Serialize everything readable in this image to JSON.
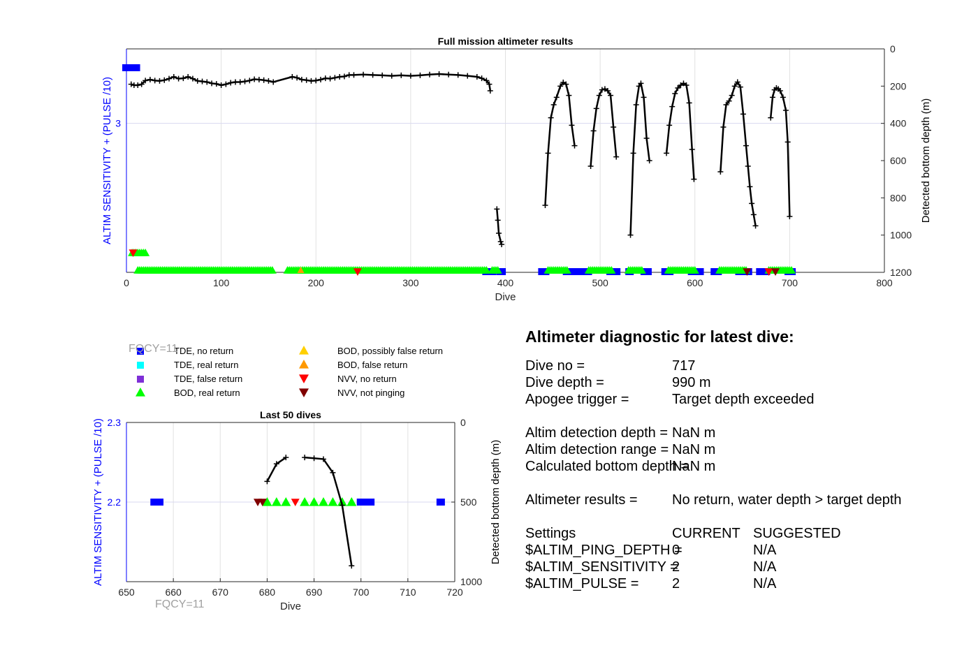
{
  "colors": {
    "tde_no_return": "#0000ff",
    "tde_real_return": "#00ffff",
    "tde_false_return": "#7e2fd7",
    "bod_real_return": "#00ff00",
    "bod_possibly_false": "#ffd000",
    "bod_false": "#ff9900",
    "nvv_no_return": "#ff0000",
    "nvv_not_pinging": "#800000",
    "depth_line": "#000000",
    "left_axis": "#0000ff",
    "fqcy": "#a0a0a0"
  },
  "fqcy_label": "FQCY=11",
  "legend": [
    {
      "label": "TDE, no return",
      "marker": "square",
      "color": "#0000ff"
    },
    {
      "label": "TDE, real return",
      "marker": "square",
      "color": "#00ffff"
    },
    {
      "label": "TDE, false return",
      "marker": "square",
      "color": "#7e2fd7"
    },
    {
      "label": "BOD, real return",
      "marker": "triangle-up",
      "color": "#00ff00"
    },
    {
      "label": "BOD, possibly false return",
      "marker": "triangle-up",
      "color": "#ffd000"
    },
    {
      "label": "BOD, false return",
      "marker": "triangle-up",
      "color": "#ff9900"
    },
    {
      "label": "NVV, no return",
      "marker": "triangle-down",
      "color": "#ff0000"
    },
    {
      "label": "NVV, not pinging",
      "marker": "triangle-down",
      "color": "#800000"
    }
  ],
  "chart_data": [
    {
      "type": "scatter",
      "title": "Full mission altimeter results",
      "xlabel": "Dive",
      "ylabel": "ALTIM SENSITIVITY + (PULSE /10)",
      "y2label": "Detected bottom depth (m)",
      "xlim": [
        0,
        800
      ],
      "xticks": [
        0,
        100,
        200,
        300,
        400,
        500,
        600,
        700,
        800
      ],
      "ylim": [
        2.2,
        3.4
      ],
      "yticks": [
        3
      ],
      "y2lim": [
        0,
        1200
      ],
      "y2ticks": [
        0,
        200,
        400,
        600,
        800,
        1000,
        1200
      ],
      "y2_reversed": true,
      "grid": true,
      "depth_segments": [
        [
          [
            5,
            190
          ],
          [
            8,
            195
          ],
          [
            12,
            195
          ],
          [
            16,
            190
          ],
          [
            20,
            170
          ],
          [
            25,
            165
          ],
          [
            30,
            170
          ],
          [
            35,
            172
          ],
          [
            40,
            168
          ],
          [
            45,
            160
          ],
          [
            50,
            150
          ],
          [
            55,
            160
          ],
          [
            60,
            158
          ],
          [
            65,
            150
          ],
          [
            70,
            160
          ],
          [
            75,
            172
          ],
          [
            80,
            175
          ],
          [
            85,
            178
          ],
          [
            90,
            185
          ],
          [
            95,
            188
          ],
          [
            100,
            195
          ],
          [
            105,
            190
          ],
          [
            110,
            182
          ],
          [
            115,
            178
          ],
          [
            120,
            178
          ],
          [
            125,
            175
          ],
          [
            130,
            170
          ],
          [
            135,
            163
          ],
          [
            140,
            165
          ],
          [
            145,
            168
          ],
          [
            150,
            172
          ],
          [
            155,
            178
          ],
          [
            175,
            150
          ],
          [
            180,
            155
          ],
          [
            185,
            165
          ],
          [
            190,
            168
          ],
          [
            195,
            172
          ],
          [
            200,
            170
          ],
          [
            205,
            165
          ],
          [
            210,
            158
          ],
          [
            215,
            160
          ],
          [
            220,
            155
          ],
          [
            225,
            150
          ],
          [
            230,
            148
          ],
          [
            235,
            140
          ],
          [
            240,
            140
          ],
          [
            250,
            138
          ],
          [
            260,
            140
          ],
          [
            270,
            142
          ],
          [
            280,
            145
          ],
          [
            290,
            142
          ],
          [
            300,
            145
          ],
          [
            310,
            142
          ],
          [
            320,
            138
          ],
          [
            330,
            135
          ],
          [
            340,
            138
          ],
          [
            350,
            140
          ],
          [
            360,
            145
          ],
          [
            370,
            150
          ],
          [
            375,
            158
          ],
          [
            380,
            170
          ],
          [
            383,
            190
          ],
          [
            384,
            225
          ]
        ],
        [
          [
            391,
            860
          ],
          [
            392,
            920
          ],
          [
            393,
            990
          ],
          [
            395,
            1035
          ],
          [
            396,
            1050
          ]
        ],
        [
          [
            442,
            840
          ],
          [
            445,
            560
          ],
          [
            448,
            370
          ],
          [
            451,
            300
          ],
          [
            454,
            260
          ],
          [
            458,
            200
          ],
          [
            461,
            180
          ],
          [
            464,
            190
          ],
          [
            467,
            250
          ],
          [
            470,
            410
          ],
          [
            473,
            520
          ]
        ],
        [
          [
            490,
            630
          ],
          [
            493,
            440
          ],
          [
            496,
            320
          ],
          [
            499,
            250
          ],
          [
            502,
            220
          ],
          [
            505,
            215
          ],
          [
            508,
            225
          ],
          [
            511,
            250
          ],
          [
            514,
            420
          ],
          [
            517,
            580
          ]
        ],
        [
          [
            532,
            1000
          ],
          [
            535,
            560
          ],
          [
            538,
            300
          ],
          [
            541,
            200
          ],
          [
            543,
            185
          ],
          [
            546,
            260
          ],
          [
            549,
            480
          ],
          [
            552,
            600
          ]
        ],
        [
          [
            570,
            560
          ],
          [
            573,
            410
          ],
          [
            576,
            310
          ],
          [
            579,
            240
          ],
          [
            582,
            210
          ],
          [
            585,
            195
          ],
          [
            588,
            185
          ],
          [
            591,
            195
          ],
          [
            594,
            290
          ],
          [
            597,
            540
          ],
          [
            599,
            700
          ]
        ],
        [
          [
            627,
            660
          ],
          [
            630,
            420
          ],
          [
            633,
            300
          ],
          [
            636,
            280
          ],
          [
            639,
            250
          ],
          [
            642,
            200
          ],
          [
            645,
            178
          ],
          [
            648,
            205
          ],
          [
            651,
            350
          ],
          [
            654,
            520
          ],
          [
            656,
            630
          ],
          [
            658,
            740
          ],
          [
            660,
            830
          ],
          [
            662,
            890
          ],
          [
            664,
            950
          ]
        ],
        [
          [
            680,
            370
          ],
          [
            682,
            260
          ],
          [
            684,
            220
          ],
          [
            686,
            210
          ],
          [
            688,
            215
          ],
          [
            690,
            225
          ],
          [
            693,
            260
          ],
          [
            696,
            330
          ],
          [
            698,
            500
          ],
          [
            700,
            900
          ]
        ]
      ],
      "tde_no_return": [
        [
          0,
          1
        ],
        [
          1,
          1
        ],
        [
          2,
          1
        ],
        [
          3,
          1
        ],
        [
          4,
          1
        ],
        [
          5,
          1
        ],
        [
          6,
          1
        ],
        [
          7,
          1
        ],
        [
          8,
          1
        ],
        [
          9,
          1
        ],
        [
          10,
          1
        ],
        [
          380,
          1
        ],
        [
          383,
          1
        ],
        [
          386,
          1
        ],
        [
          395,
          1
        ],
        [
          396,
          1
        ],
        [
          439,
          1
        ],
        [
          442,
          1
        ],
        [
          465,
          1
        ],
        [
          469,
          1
        ],
        [
          472,
          1
        ],
        [
          475,
          1
        ],
        [
          481,
          1
        ],
        [
          484,
          1
        ],
        [
          487,
          1
        ],
        [
          511,
          1
        ],
        [
          514,
          1
        ],
        [
          517,
          1
        ],
        [
          531,
          1
        ],
        [
          547,
          1
        ],
        [
          550,
          1
        ],
        [
          569,
          1
        ],
        [
          573,
          1
        ],
        [
          597,
          1
        ],
        [
          600,
          1
        ],
        [
          605,
          1
        ],
        [
          621,
          1
        ],
        [
          624,
          1
        ],
        [
          647,
          1
        ],
        [
          651,
          1
        ],
        [
          656,
          1
        ],
        [
          669,
          1
        ],
        [
          672,
          1
        ],
        [
          675,
          1
        ],
        [
          699,
          1
        ],
        [
          702,
          1
        ]
      ],
      "bod_real_return_band": [
        [
          12,
          155
        ],
        [
          170,
          380
        ],
        [
          386,
          392
        ],
        [
          445,
          465
        ],
        [
          488,
          512
        ],
        [
          530,
          545
        ],
        [
          572,
          600
        ],
        [
          626,
          655
        ],
        [
          678,
          702
        ]
      ],
      "nvv_no_return": [
        [
          7,
          1
        ],
        [
          244,
          1
        ],
        [
          678,
          1
        ]
      ],
      "nvv_not_pinging": [
        [
          655,
          1
        ],
        [
          685,
          1
        ]
      ],
      "bod_false_return": [
        [
          184,
          1
        ]
      ]
    },
    {
      "type": "scatter",
      "title": "Last 50 dives",
      "xlabel": "Dive",
      "ylabel": "ALTIM SENSITIVITY + (PULSE /10)",
      "y2label": "Detected bottom depth (m)",
      "xlim": [
        650,
        720
      ],
      "xticks": [
        650,
        660,
        670,
        680,
        690,
        700,
        710,
        720
      ],
      "ylim": [
        2.1,
        2.3
      ],
      "yticks": [
        2.2,
        2.3
      ],
      "y2lim": [
        0,
        1000
      ],
      "y2ticks": [
        0,
        500,
        1000
      ],
      "y2_reversed": true,
      "grid": true,
      "depth_segments": [
        [
          [
            680,
            370
          ],
          [
            682,
            260
          ],
          [
            684,
            220
          ]
        ],
        [
          [
            688,
            220
          ],
          [
            690,
            225
          ],
          [
            692,
            230
          ],
          [
            694,
            315
          ],
          [
            696,
            520
          ],
          [
            698,
            900
          ]
        ]
      ],
      "tde_no_return": [
        [
          656,
          2.2
        ],
        [
          657,
          2.2
        ],
        [
          700,
          2.2
        ],
        [
          701,
          2.2
        ],
        [
          702,
          2.2
        ],
        [
          717,
          2.2
        ]
      ],
      "bod_real_return": [
        [
          680,
          2.2
        ],
        [
          682,
          2.2
        ],
        [
          684,
          2.2
        ],
        [
          688,
          2.2
        ],
        [
          690,
          2.2
        ],
        [
          692,
          2.2
        ],
        [
          694,
          2.2
        ],
        [
          696,
          2.2
        ],
        [
          698,
          2.2
        ]
      ],
      "nvv_no_return": [
        [
          686,
          2.2
        ]
      ],
      "nvv_not_pinging": [
        [
          678,
          2.2
        ],
        [
          679,
          2.2
        ]
      ]
    }
  ],
  "diagnostic": {
    "title": "Altimeter diagnostic for latest dive:",
    "dive_no_label": "Dive no =",
    "dive_no_value": "717",
    "dive_depth_label": "Dive depth =",
    "dive_depth_value": "990 m",
    "apogee_label": "Apogee trigger =",
    "apogee_value": "Target depth exceeded",
    "detection_depth_label": "Altim detection depth =",
    "detection_depth_value": "NaN m",
    "detection_range_label": "Altim detection range =",
    "detection_range_value": "NaN m",
    "bottom_depth_label": "Calculated bottom depth =",
    "bottom_depth_value": "NaN m",
    "results_label": "Altimeter results =",
    "results_value": "No return, water depth > target depth",
    "settings_label": "Settings",
    "current_header": "CURRENT",
    "suggested_header": "SUGGESTED",
    "ping_depth_label": "$ALTIM_PING_DEPTH =",
    "ping_depth_current": "0",
    "ping_depth_suggested": "N/A",
    "sensitivity_label": "$ALTIM_SENSITIVITY =",
    "sensitivity_current": "2",
    "sensitivity_suggested": "N/A",
    "pulse_label": "$ALTIM_PULSE =",
    "pulse_current": "2",
    "pulse_suggested": "N/A"
  }
}
